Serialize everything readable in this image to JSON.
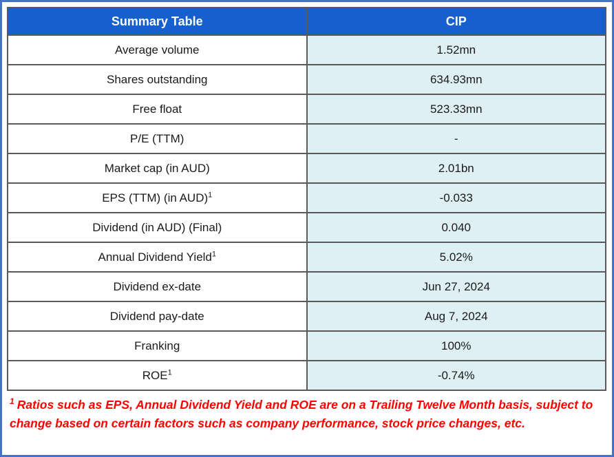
{
  "table": {
    "header": {
      "col1": "Summary Table",
      "col2": "CIP"
    },
    "rows": [
      {
        "label": "Average volume",
        "sup": "",
        "value": "1.52mn"
      },
      {
        "label": "Shares outstanding",
        "sup": "",
        "value": "634.93mn"
      },
      {
        "label": "Free float",
        "sup": "",
        "value": "523.33mn"
      },
      {
        "label": "P/E (TTM)",
        "sup": "",
        "value": "-"
      },
      {
        "label": "Market cap (in AUD)",
        "sup": "",
        "value": "2.01bn"
      },
      {
        "label": "EPS (TTM) (in AUD)",
        "sup": "1",
        "value": "-0.033"
      },
      {
        "label": "Dividend (in AUD) (Final)",
        "sup": "",
        "value": "0.040"
      },
      {
        "label": "Annual Dividend Yield",
        "sup": "1",
        "value": "5.02%"
      },
      {
        "label": "Dividend ex-date",
        "sup": "",
        "value": "Jun 27, 2024"
      },
      {
        "label": "Dividend pay-date",
        "sup": "",
        "value": "Aug 7, 2024"
      },
      {
        "label": "Franking",
        "sup": "",
        "value": "100%"
      },
      {
        "label": "ROE",
        "sup": "1",
        "value": "-0.74%"
      }
    ]
  },
  "footnote": {
    "sup": "1",
    "text": "Ratios such as EPS, Annual Dividend Yield and ROE are on a Trailing Twelve Month basis, subject to change based on certain factors such as company performance, stock price changes, etc."
  },
  "colors": {
    "outer_border": "#4472C4",
    "header_bg": "#1560CE",
    "header_text": "#ffffff",
    "cell_border": "#595959",
    "value_cell_bg": "#DEF0F4",
    "body_text": "#1a1a1a",
    "footnote_text": "#FF0000"
  }
}
